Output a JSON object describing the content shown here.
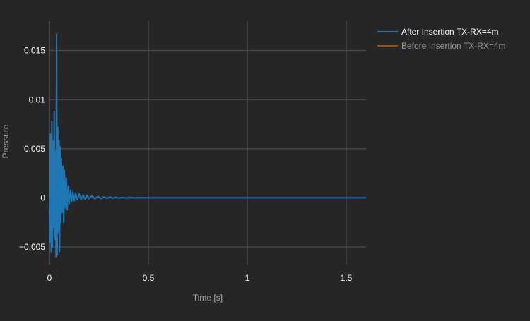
{
  "chart_data": {
    "type": "line",
    "title": "",
    "xlabel": "Time [s]",
    "ylabel": "Pressure",
    "xlim": [
      0,
      1.6
    ],
    "ylim": [
      -0.0068,
      0.018
    ],
    "x_ticks": [
      0,
      0.5,
      1,
      1.5
    ],
    "x_tick_labels": [
      "0",
      "0.5",
      "1",
      "1.5"
    ],
    "y_ticks": [
      -0.005,
      0,
      0.005,
      0.01,
      0.015
    ],
    "y_tick_labels": [
      "−0.005",
      "0",
      "0.005",
      "0.01",
      "0.015"
    ],
    "grid": true,
    "legend_position": "top-right",
    "series": [
      {
        "name": "After Insertion TX-RX=4m",
        "color": "#1f77b4",
        "visible": true,
        "x": [
          0,
          0.003,
          0.006,
          0.009,
          0.012,
          0.015,
          0.018,
          0.021,
          0.024,
          0.027,
          0.03,
          0.033,
          0.036,
          0.039,
          0.042,
          0.045,
          0.048,
          0.051,
          0.054,
          0.057,
          0.06,
          0.064,
          0.068,
          0.072,
          0.076,
          0.08,
          0.085,
          0.09,
          0.095,
          0.1,
          0.106,
          0.112,
          0.118,
          0.125,
          0.132,
          0.14,
          0.15,
          0.16,
          0.17,
          0.18,
          0.19,
          0.2,
          0.215,
          0.23,
          0.245,
          0.26,
          0.275,
          0.29,
          0.305,
          0.32,
          0.335,
          0.35,
          0.37,
          0.39,
          0.41,
          0.43,
          0.45,
          0.5,
          0.6,
          0.7,
          0.8,
          1.0,
          1.2,
          1.4,
          1.6
        ],
        "y": [
          0,
          -0.0045,
          0.0065,
          -0.0055,
          0.0078,
          -0.005,
          0.0058,
          -0.003,
          0.0088,
          -0.0042,
          0.0048,
          -0.006,
          0.0167,
          -0.0058,
          0.0072,
          -0.0035,
          0.0058,
          -0.0055,
          0.0052,
          -0.0025,
          0.004,
          -0.0015,
          0.0032,
          -0.0025,
          0.0028,
          -0.001,
          0.002,
          -0.0012,
          0.0012,
          -0.0006,
          0.0008,
          -0.0004,
          0.0006,
          -0.0003,
          0.0005,
          -0.0002,
          0.0004,
          -0.0002,
          0.0003,
          -0.00015,
          0.00025,
          -0.0001,
          0.0002,
          -0.0001,
          0.00015,
          -8e-05,
          0.0001,
          -5e-05,
          8e-05,
          -4e-05,
          5e-05,
          -3e-05,
          3e-05,
          -2e-05,
          2e-05,
          -1e-05,
          1e-05,
          0,
          0,
          0,
          0,
          0,
          0,
          0,
          0
        ]
      },
      {
        "name": "Before Insertion TX-RX=4m",
        "color": "#ff7f0e",
        "visible": false,
        "x": [],
        "y": []
      }
    ]
  }
}
